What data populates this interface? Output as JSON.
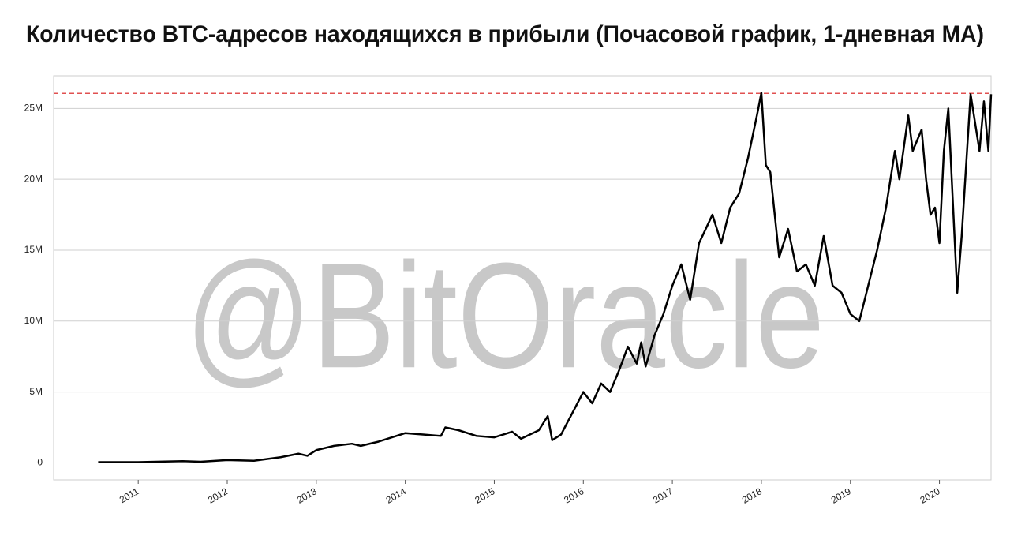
{
  "chart_data": {
    "type": "line",
    "title": "Количество BTC-адресов находящихся в прибыли (Почасовой график, 1-дневная MA)",
    "watermark": "@BitOracle",
    "x": [
      2010.55,
      2011.0,
      2011.5,
      2011.7,
      2012.0,
      2012.3,
      2012.6,
      2012.8,
      2012.9,
      2013.0,
      2013.2,
      2013.4,
      2013.5,
      2013.7,
      2014.0,
      2014.2,
      2014.4,
      2014.45,
      2014.6,
      2014.8,
      2015.0,
      2015.2,
      2015.3,
      2015.5,
      2015.6,
      2015.65,
      2015.75,
      2015.9,
      2016.0,
      2016.1,
      2016.2,
      2016.3,
      2016.4,
      2016.5,
      2016.6,
      2016.65,
      2016.7,
      2016.8,
      2016.9,
      2017.0,
      2017.1,
      2017.2,
      2017.3,
      2017.45,
      2017.55,
      2017.65,
      2017.75,
      2017.85,
      2017.95,
      2018.0,
      2018.05,
      2018.1,
      2018.2,
      2018.3,
      2018.4,
      2018.5,
      2018.6,
      2018.7,
      2018.8,
      2018.9,
      2019.0,
      2019.1,
      2019.2,
      2019.3,
      2019.4,
      2019.5,
      2019.55,
      2019.65,
      2019.7,
      2019.8,
      2019.85,
      2019.9,
      2019.95,
      2020.0,
      2020.05,
      2020.1,
      2020.2,
      2020.25,
      2020.35,
      2020.45,
      2020.5,
      2020.55,
      2020.58
    ],
    "values": [
      0.05,
      0.05,
      0.12,
      0.08,
      0.2,
      0.15,
      0.4,
      0.65,
      0.5,
      0.9,
      1.2,
      1.35,
      1.2,
      1.5,
      2.1,
      2.0,
      1.9,
      2.5,
      2.3,
      1.9,
      1.8,
      2.2,
      1.7,
      2.3,
      3.3,
      1.6,
      2.0,
      3.8,
      5.0,
      4.2,
      5.6,
      5.0,
      6.5,
      8.2,
      7.0,
      8.5,
      6.8,
      9.0,
      10.5,
      12.5,
      14.0,
      11.5,
      15.5,
      17.5,
      15.5,
      18.0,
      19.0,
      21.5,
      24.5,
      26.1,
      21.0,
      20.5,
      14.5,
      16.5,
      13.5,
      14.0,
      12.5,
      16.0,
      12.5,
      12.0,
      10.5,
      10.0,
      12.5,
      15.0,
      18.0,
      22.0,
      20.0,
      24.5,
      22.0,
      23.5,
      20.0,
      17.5,
      18.0,
      15.5,
      22.0,
      25.0,
      12.0,
      16.0,
      26.0,
      22.0,
      25.5,
      22.0,
      26.0
    ],
    "color": "#000000",
    "max_line": 26.06,
    "max_line_color": "#e05050",
    "xlim": [
      2010.05,
      2020.58
    ],
    "xticks": [
      2011,
      2012,
      2013,
      2014,
      2015,
      2016,
      2017,
      2018,
      2019,
      2020
    ],
    "ylim": [
      -1.2,
      27.3
    ],
    "yticks": [
      0,
      {
        "value": 5,
        "label": "5M"
      },
      {
        "value": 10,
        "label": "10M"
      },
      {
        "value": 15,
        "label": "15M"
      },
      {
        "value": 20,
        "label": "20M"
      },
      {
        "value": 25,
        "label": "25M"
      }
    ],
    "grid": true
  }
}
